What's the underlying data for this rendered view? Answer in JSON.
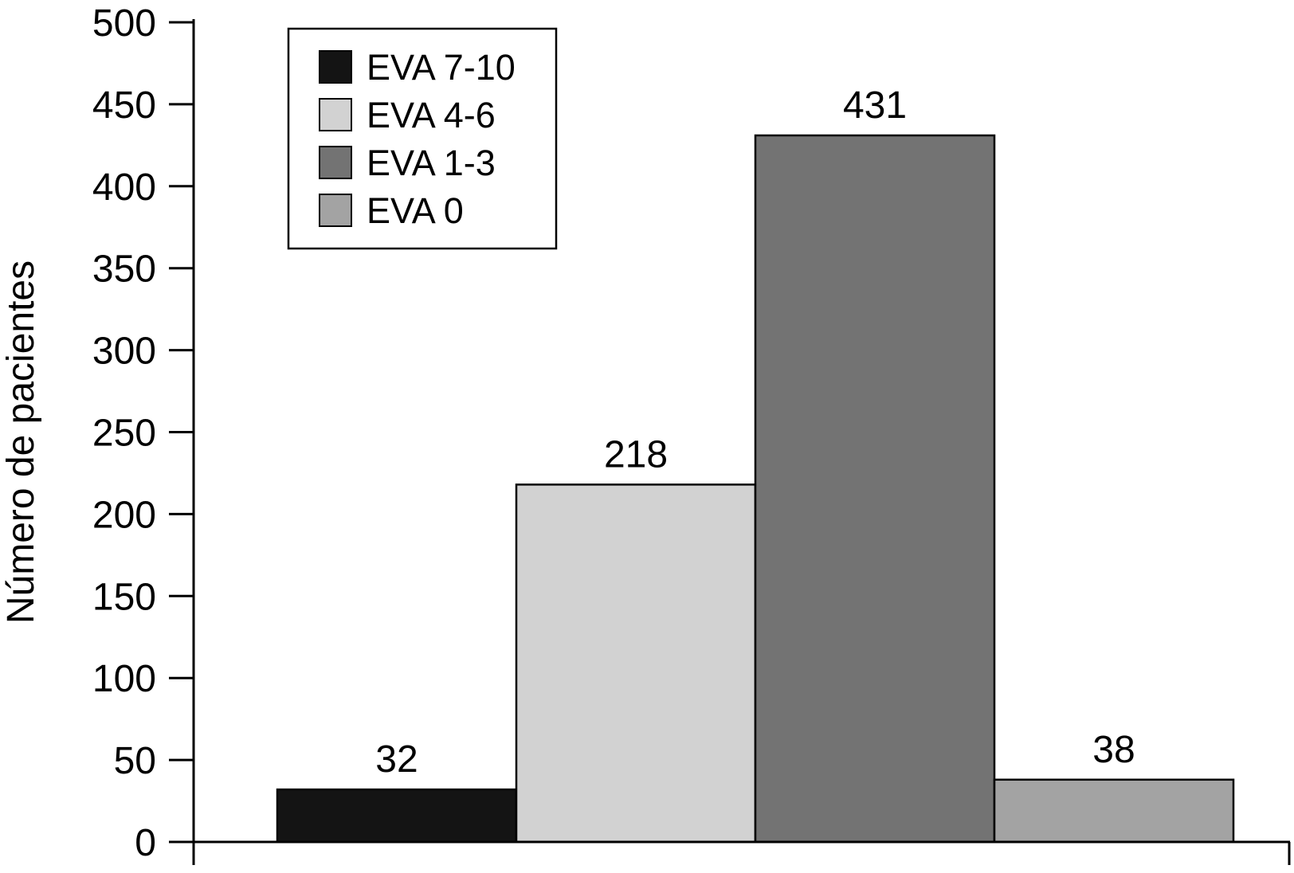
{
  "chart_data": {
    "type": "bar",
    "categories": [
      "EVA 7-10",
      "EVA 4-6",
      "EVA 1-3",
      "EVA 0"
    ],
    "values": [
      32,
      218,
      431,
      38
    ],
    "colors": [
      "#141414",
      "#d2d2d2",
      "#737373",
      "#a3a3a3"
    ],
    "data_labels": [
      "32",
      "218",
      "431",
      "38"
    ],
    "title": "",
    "xlabel": "",
    "ylabel": "Número de pacientes",
    "ylim": [
      0,
      500
    ],
    "yticks": [
      0,
      50,
      100,
      150,
      200,
      250,
      300,
      350,
      400,
      450,
      500
    ],
    "grid": false,
    "legend": {
      "placement": "top-left",
      "entries": [
        {
          "label": "EVA 7-10",
          "color": "#141414"
        },
        {
          "label": "EVA 4-6",
          "color": "#d2d2d2"
        },
        {
          "label": "EVA 1-3",
          "color": "#737373"
        },
        {
          "label": "EVA 0",
          "color": "#a3a3a3"
        }
      ]
    }
  }
}
